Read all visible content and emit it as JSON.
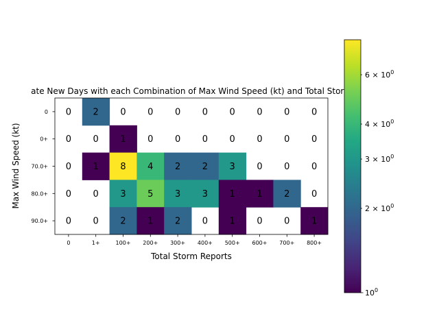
{
  "chart_data": {
    "type": "heatmap",
    "title": "ate New Days with each Combination of Max Wind Speed (kt) and Total Storm",
    "xlabel": "Total Storm Reports",
    "ylabel": "Max Wind Speed (kt)",
    "x_categories": [
      "0",
      "1+",
      "100+",
      "200+",
      "300+",
      "400+",
      "500+",
      "600+",
      "700+",
      "800+"
    ],
    "y_categories": [
      "0",
      "0+",
      "70.0+",
      "80.0+",
      "90.0+"
    ],
    "values": [
      [
        0,
        2,
        0,
        0,
        0,
        0,
        0,
        0,
        0,
        0
      ],
      [
        0,
        0,
        1,
        0,
        0,
        0,
        0,
        0,
        0,
        0
      ],
      [
        0,
        1,
        8,
        4,
        2,
        2,
        3,
        0,
        0,
        0
      ],
      [
        0,
        0,
        3,
        5,
        3,
        3,
        1,
        1,
        2,
        0
      ],
      [
        0,
        0,
        2,
        1,
        2,
        0,
        1,
        0,
        0,
        1
      ]
    ],
    "color_scale": "log",
    "colormap": "viridis",
    "colorbar": {
      "range": [
        1,
        8
      ],
      "major_ticks": [
        {
          "value": 1,
          "label": "10",
          "exp": "0"
        }
      ],
      "minor_ticks": [
        {
          "value": 2,
          "label": "2 × 10",
          "exp": "0"
        },
        {
          "value": 3,
          "label": "3 × 10",
          "exp": "0"
        },
        {
          "value": 4,
          "label": "4 × 10",
          "exp": "0"
        },
        {
          "value": 6,
          "label": "6 × 10",
          "exp": "0"
        }
      ]
    },
    "grid": false,
    "legend": "colorbar-right"
  }
}
